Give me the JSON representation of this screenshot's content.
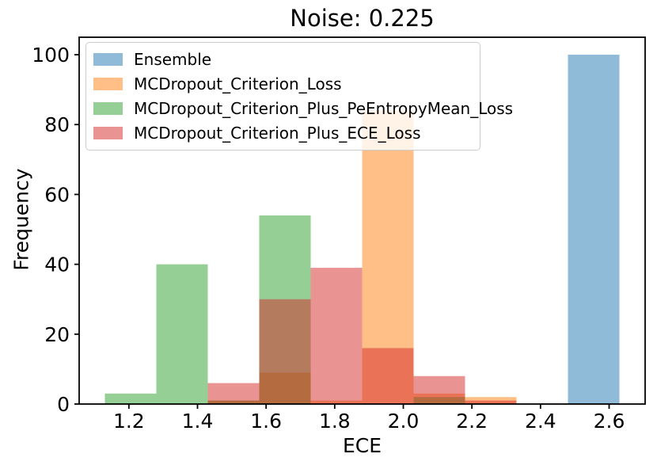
{
  "title": "Noise: 0.225",
  "chart_data": {
    "type": "bar",
    "subtype": "overlapping-histograms",
    "title": "Noise: 0.225",
    "xlabel": "ECE",
    "ylabel": "Frequency",
    "bin_edges": [
      1.13,
      1.28,
      1.43,
      1.58,
      1.73,
      1.88,
      2.03,
      2.18,
      2.33,
      2.48,
      2.63
    ],
    "series": [
      {
        "name": "Ensemble",
        "color": "#1f77b4",
        "counts": [
          0,
          0,
          0,
          0,
          0,
          0,
          0,
          0,
          0,
          100
        ]
      },
      {
        "name": "MCDropout_Criterion_Loss",
        "color": "#ff7f0e",
        "counts": [
          0,
          0,
          1,
          9,
          1,
          84,
          3,
          2,
          0,
          0
        ]
      },
      {
        "name": "MCDropout_Criterion_Plus_PeEntropyMean_Loss",
        "color": "#2ca02c",
        "counts": [
          3,
          40,
          1,
          54,
          0,
          0,
          2,
          0,
          0,
          0
        ]
      },
      {
        "name": "MCDropout_Criterion_Plus_ECE_Loss",
        "color": "#d62728",
        "counts": [
          0,
          0,
          6,
          30,
          39,
          16,
          8,
          1,
          0,
          0
        ]
      }
    ],
    "bar_alpha": 0.5,
    "x_ticks": [
      "1.2",
      "1.4",
      "1.6",
      "1.8",
      "2.0",
      "2.2",
      "2.4",
      "2.6"
    ],
    "y_ticks": [
      "0",
      "20",
      "40",
      "60",
      "80",
      "100"
    ],
    "x_tick_values": [
      1.2,
      1.4,
      1.6,
      1.8,
      2.0,
      2.2,
      2.4,
      2.6
    ],
    "y_tick_values": [
      0,
      20,
      40,
      60,
      80,
      100
    ],
    "xlim": [
      1.055,
      2.705
    ],
    "ylim": [
      0,
      105
    ],
    "grid": false,
    "legend_position": "upper-left",
    "spine_color": "#000000",
    "background_color": "#ffffff"
  }
}
